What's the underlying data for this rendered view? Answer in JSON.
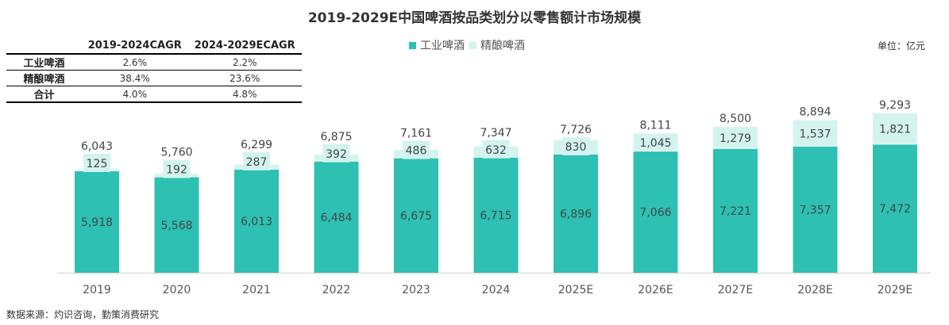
{
  "chart_data": {
    "type": "bar",
    "stacked": true,
    "title": "2019-2029E中国啤酒按品类划分以零售额计市场规模",
    "unit_label": "单位：亿元",
    "categories": [
      "2019",
      "2020",
      "2021",
      "2022",
      "2023",
      "2024",
      "2025E",
      "2026E",
      "2027E",
      "2028E",
      "2029E"
    ],
    "series": [
      {
        "name": "工业啤酒",
        "color": "#2EC0B2",
        "values": [
          5918,
          5568,
          6013,
          6484,
          6675,
          6715,
          6896,
          7066,
          7221,
          7357,
          7472
        ],
        "labels": [
          "5,918",
          "5,568",
          "6,013",
          "6,484",
          "6,675",
          "6,715",
          "6,896",
          "7,066",
          "7,221",
          "7,357",
          "7,472"
        ]
      },
      {
        "name": "精酿啤酒",
        "color": "#D3F3EF",
        "values": [
          125,
          192,
          287,
          392,
          486,
          632,
          830,
          1045,
          1279,
          1537,
          1821
        ],
        "labels": [
          "125",
          "192",
          "287",
          "392",
          "486",
          "632",
          "830",
          "1,045",
          "1,279",
          "1,537",
          "1,821"
        ]
      }
    ],
    "totals": [
      6043,
      5760,
      6299,
      6875,
      7161,
      7347,
      7726,
      8111,
      8500,
      8894,
      9293
    ],
    "total_labels": [
      "6,043",
      "5,760",
      "6,299",
      "6,875",
      "7,161",
      "7,347",
      "7,726",
      "8,111",
      "8,500",
      "8,894",
      "9,293"
    ],
    "ylim": [
      0,
      9293
    ],
    "legend_position": "top-center",
    "grid": false,
    "xlabel": "",
    "ylabel": ""
  },
  "cagr_table": {
    "headers": [
      "",
      "2019-2024CAGR",
      "2024-2029ECAGR"
    ],
    "rows": [
      {
        "label": "工业啤酒",
        "c1": "2.6%",
        "c2": "2.2%"
      },
      {
        "label": "精酿啤酒",
        "c1": "38.4%",
        "c2": "23.6%"
      },
      {
        "label": "合计",
        "c1": "4.0%",
        "c2": "4.8%"
      }
    ]
  },
  "legend": {
    "items": [
      "工业啤酒",
      "精酿啤酒"
    ]
  },
  "unit": "单位：亿元",
  "source": "数据来源：灼识咨询，勤策消费研究"
}
